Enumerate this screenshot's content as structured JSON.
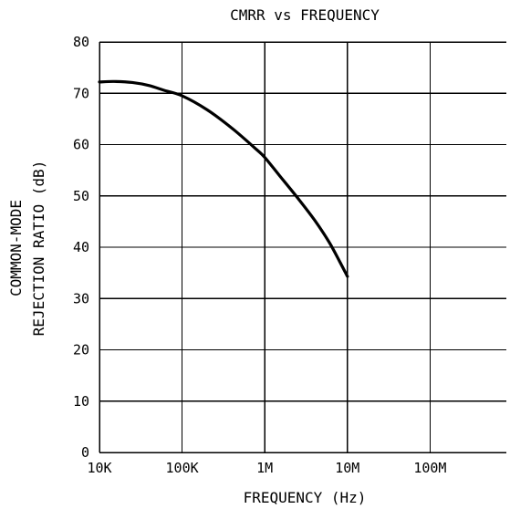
{
  "chart_data": {
    "type": "line",
    "title": "CMRR vs FREQUENCY",
    "xlabel": "FREQUENCY (Hz)",
    "ylabel_lines": [
      "COMMON-MODE",
      "REJECTION RATIO (dB)"
    ],
    "x_scale": "log",
    "xlim": [
      10000,
      1000000000
    ],
    "ylim": [
      0,
      80
    ],
    "grid": true,
    "x_ticks": [
      {
        "value": 10000,
        "label": "10K"
      },
      {
        "value": 100000,
        "label": "100K"
      },
      {
        "value": 1000000,
        "label": "1M"
      },
      {
        "value": 10000000,
        "label": "10M"
      },
      {
        "value": 100000000,
        "label": "100M"
      }
    ],
    "y_ticks": [
      {
        "value": 0,
        "label": "0"
      },
      {
        "value": 10,
        "label": "10"
      },
      {
        "value": 20,
        "label": "20"
      },
      {
        "value": 30,
        "label": "30"
      },
      {
        "value": 40,
        "label": "40"
      },
      {
        "value": 50,
        "label": "50"
      },
      {
        "value": 60,
        "label": "60"
      },
      {
        "value": 70,
        "label": "70"
      },
      {
        "value": 80,
        "label": "80"
      }
    ],
    "series": [
      {
        "color": "#000000",
        "x": [
          10000,
          15000,
          25000,
          40000,
          60000,
          100000,
          200000,
          400000,
          800000,
          1000000,
          1500000,
          2500000,
          4000000,
          6000000,
          8000000,
          10000000
        ],
        "y": [
          72.2,
          72.3,
          72.1,
          71.5,
          70.6,
          69.5,
          66.8,
          63.2,
          59.0,
          57.5,
          54.0,
          49.6,
          45.3,
          41.0,
          37.3,
          34.3
        ]
      }
    ]
  }
}
